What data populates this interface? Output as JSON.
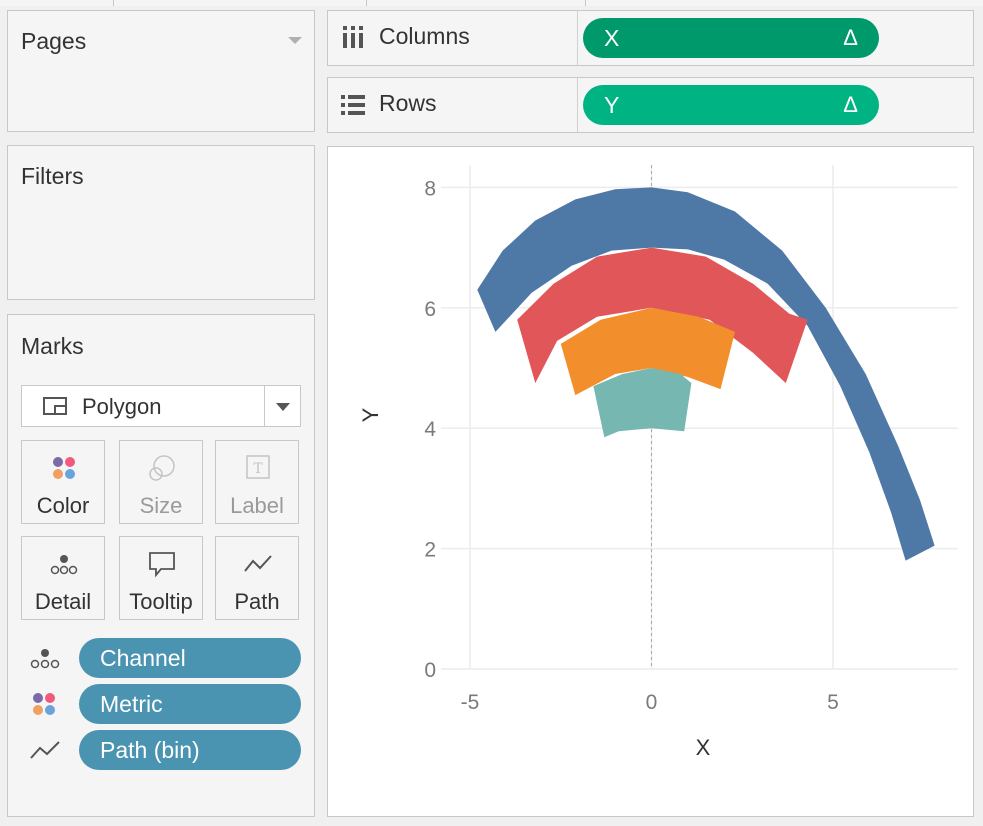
{
  "pages": {
    "title": "Pages"
  },
  "filters": {
    "title": "Filters"
  },
  "marks": {
    "title": "Marks",
    "mark_type": "Polygon",
    "cards": [
      {
        "label": "Color",
        "icon": "color-dots-icon",
        "enabled": true
      },
      {
        "label": "Size",
        "icon": "size-icon",
        "enabled": false
      },
      {
        "label": "Label",
        "icon": "label-icon",
        "enabled": false
      },
      {
        "label": "Detail",
        "icon": "detail-icon",
        "enabled": true
      },
      {
        "label": "Tooltip",
        "icon": "tooltip-icon",
        "enabled": true
      },
      {
        "label": "Path",
        "icon": "path-icon",
        "enabled": true
      }
    ],
    "fields": [
      {
        "label": "Channel",
        "icon": "detail-icon"
      },
      {
        "label": "Metric",
        "icon": "color-dots-icon"
      },
      {
        "label": "Path (bin)",
        "icon": "path-icon"
      }
    ],
    "pill_color": "#4a94b1"
  },
  "shelves": {
    "columns": {
      "label": "Columns",
      "icon": "columns-icon",
      "pill": "X",
      "pill_marker": "Δ",
      "pill_color": "#00996b"
    },
    "rows": {
      "label": "Rows",
      "icon": "rows-icon",
      "pill": "Y",
      "pill_marker": "Δ",
      "pill_color": "#00b383"
    }
  },
  "chart_data": {
    "type": "area",
    "xlabel": "X",
    "ylabel": "Y",
    "xlim": [
      -5,
      8.5
    ],
    "ylim": [
      0,
      8.3
    ],
    "x_ticks": [
      "-5",
      "0",
      "5"
    ],
    "y_ticks": [
      "0",
      "2",
      "4",
      "6",
      "8"
    ],
    "x_tick_values": [
      -5,
      0,
      5
    ],
    "y_tick_values": [
      0,
      2,
      4,
      6,
      8
    ],
    "grid": true,
    "reference_line_x": 0,
    "series": [
      {
        "color": "#4e79a7",
        "polygon": [
          [
            -4.8,
            6.3
          ],
          [
            -4.1,
            6.95
          ],
          [
            -3.2,
            7.45
          ],
          [
            -2.1,
            7.8
          ],
          [
            -1,
            7.97
          ],
          [
            0,
            8
          ],
          [
            1,
            7.92
          ],
          [
            2.3,
            7.6
          ],
          [
            3.6,
            6.95
          ],
          [
            4.8,
            6
          ],
          [
            5.9,
            4.9
          ],
          [
            6.8,
            3.7
          ],
          [
            7.4,
            2.8
          ],
          [
            7.8,
            2.05
          ],
          [
            7.0,
            1.8
          ],
          [
            6.6,
            2.6
          ],
          [
            6.0,
            3.6
          ],
          [
            5.2,
            4.7
          ],
          [
            4.3,
            5.7
          ],
          [
            3.2,
            6.4
          ],
          [
            2.0,
            6.8
          ],
          [
            1.0,
            6.97
          ],
          [
            0,
            7.0
          ],
          [
            -1.1,
            6.95
          ],
          [
            -2.2,
            6.7
          ],
          [
            -3.3,
            6.25
          ],
          [
            -4.3,
            5.6
          ]
        ]
      },
      {
        "color": "#e15759",
        "polygon": [
          [
            -3.7,
            5.8
          ],
          [
            -2.7,
            6.4
          ],
          [
            -1.5,
            6.85
          ],
          [
            0,
            7.0
          ],
          [
            1.5,
            6.85
          ],
          [
            2.8,
            6.4
          ],
          [
            3.8,
            5.9
          ],
          [
            4.3,
            5.8
          ],
          [
            3.7,
            4.75
          ],
          [
            2.8,
            5.25
          ],
          [
            1.6,
            5.8
          ],
          [
            0,
            6.0
          ],
          [
            -1.5,
            5.85
          ],
          [
            -2.6,
            5.45
          ],
          [
            -3.2,
            4.75
          ]
        ]
      },
      {
        "color": "#f28e2b",
        "polygon": [
          [
            -2.5,
            5.4
          ],
          [
            -1.4,
            5.8
          ],
          [
            0,
            6.0
          ],
          [
            1.3,
            5.85
          ],
          [
            2.3,
            5.6
          ],
          [
            1.9,
            4.65
          ],
          [
            1.0,
            4.85
          ],
          [
            0,
            5.0
          ],
          [
            -1.0,
            4.9
          ],
          [
            -2.1,
            4.55
          ]
        ]
      },
      {
        "color": "#76b7b2",
        "polygon": [
          [
            -1.6,
            4.7
          ],
          [
            -0.8,
            4.9
          ],
          [
            0,
            5.0
          ],
          [
            0.8,
            4.9
          ],
          [
            1.1,
            4.75
          ],
          [
            0.9,
            3.95
          ],
          [
            0,
            4.0
          ],
          [
            -0.9,
            3.95
          ],
          [
            -1.3,
            3.85
          ]
        ]
      }
    ]
  }
}
